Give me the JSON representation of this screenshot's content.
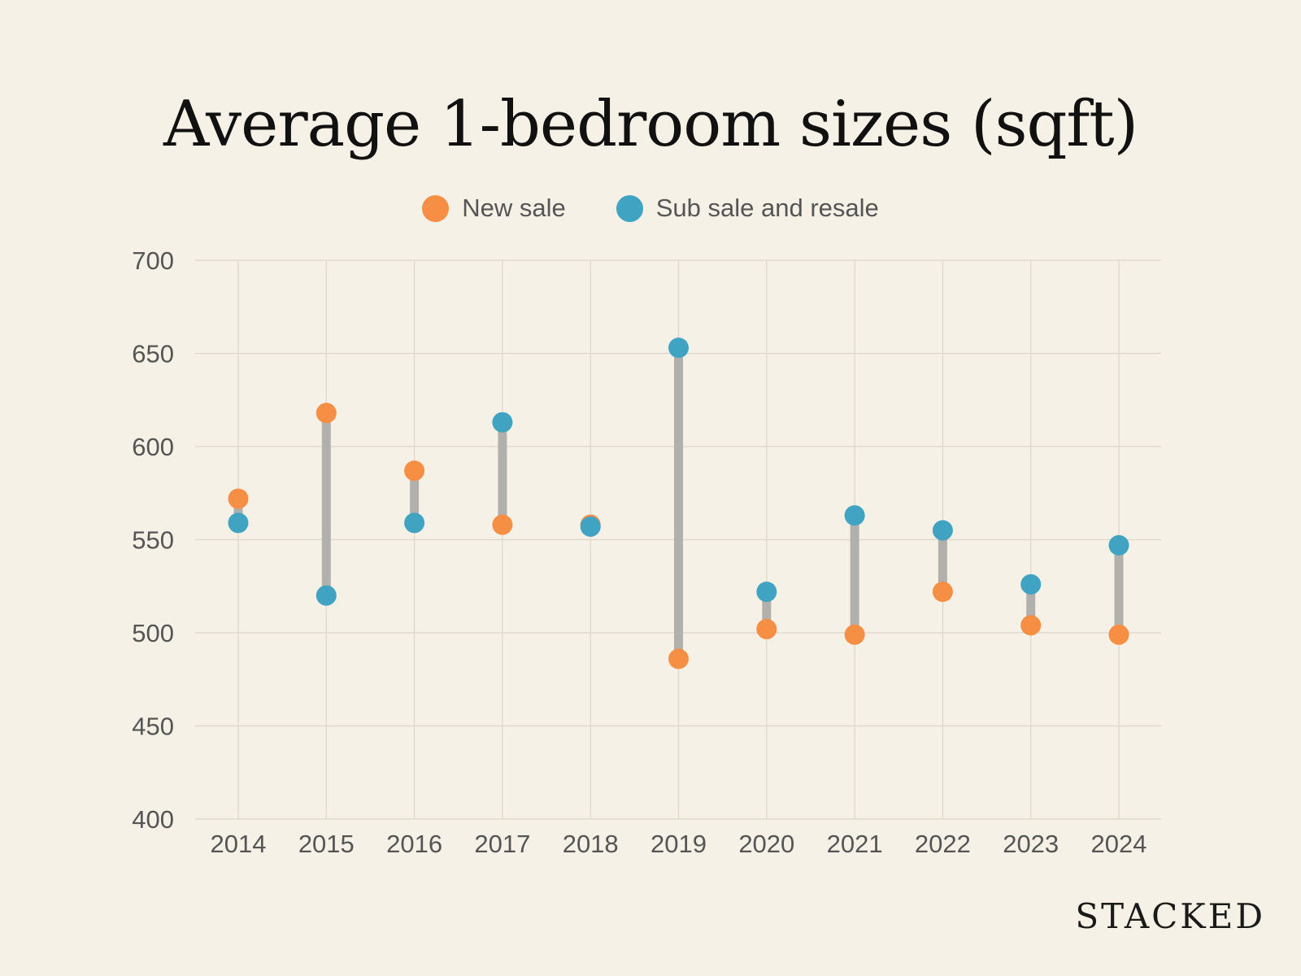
{
  "chart_data": {
    "type": "scatter",
    "variant": "dumbbell",
    "title": "Average 1-bedroom sizes (sqft)",
    "xlabel": "",
    "ylabel": "",
    "categories": [
      "2014",
      "2015",
      "2016",
      "2017",
      "2018",
      "2019",
      "2020",
      "2021",
      "2022",
      "2023",
      "2024"
    ],
    "ylim": [
      400,
      700
    ],
    "yticks": [
      700,
      650,
      600,
      550,
      500,
      450,
      400
    ],
    "grid": true,
    "legend_position": "top-center",
    "series": [
      {
        "name": "New sale",
        "color": "#f68e44",
        "values": [
          572,
          618,
          587,
          558,
          558,
          486,
          502,
          499,
          522,
          504,
          499
        ]
      },
      {
        "name": "Sub sale and resale",
        "color": "#41a3c2",
        "values": [
          559,
          520,
          559,
          613,
          557,
          653,
          522,
          563,
          555,
          526,
          547
        ]
      }
    ],
    "connector_color": "#b2b0ac"
  },
  "brand": "STACKED"
}
